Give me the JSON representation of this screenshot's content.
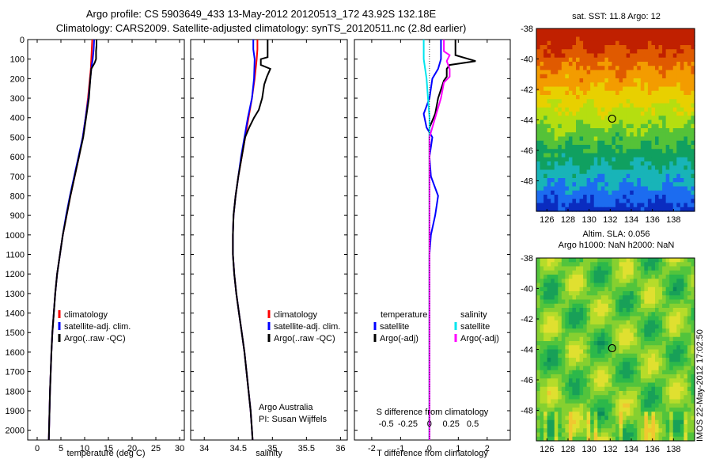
{
  "header": {
    "title_line1": "Argo profile: CS 5903649_433 13-May-2012 20120513_172 43.92S 132.18E",
    "title_line2": "Climatology: CARS2009. Satellite-adjusted climatology: synTS_20120511.nc (2.8d earlier)"
  },
  "colors": {
    "climatology": "#ff0000",
    "satellite": "#0000ff",
    "argo": "#000000",
    "satellite_salinity": "#00e5ee",
    "argo_salinity": "#ff00ff"
  },
  "chart_data": [
    {
      "id": "temperature",
      "type": "line",
      "xlabel": "temperature (deg C)",
      "xlim": [
        -2,
        31
      ],
      "xticks": [
        0,
        5,
        10,
        15,
        20,
        25,
        30
      ],
      "ylim": [
        0,
        2050
      ],
      "yticks": [
        0,
        100,
        200,
        300,
        400,
        500,
        600,
        700,
        800,
        900,
        1000,
        1100,
        1200,
        1300,
        1400,
        1500,
        1600,
        1700,
        1800,
        1900,
        2000
      ],
      "y_reversed": true,
      "legend": {
        "position": "lower-center",
        "entries": [
          "climatology",
          "satellite-adj. clim.",
          "Argo(..raw -QC)"
        ]
      },
      "series": [
        {
          "name": "climatology",
          "color": "#ff0000",
          "points": [
            [
              11.6,
              0
            ],
            [
              11.5,
              50
            ],
            [
              11.4,
              100
            ],
            [
              11.3,
              150
            ],
            [
              11.1,
              200
            ],
            [
              10.7,
              300
            ],
            [
              10.2,
              400
            ],
            [
              9.6,
              500
            ],
            [
              8.8,
              600
            ],
            [
              7.9,
              700
            ],
            [
              7.0,
              800
            ],
            [
              6.2,
              900
            ],
            [
              5.4,
              1000
            ],
            [
              4.8,
              1100
            ],
            [
              4.2,
              1200
            ],
            [
              3.8,
              1300
            ],
            [
              3.5,
              1400
            ],
            [
              3.2,
              1500
            ],
            [
              3.0,
              1600
            ],
            [
              2.85,
              1700
            ],
            [
              2.7,
              1800
            ],
            [
              2.6,
              1900
            ],
            [
              2.5,
              2000
            ],
            [
              2.45,
              2050
            ]
          ]
        },
        {
          "name": "satellite-adj. clim.",
          "color": "#0000ff",
          "points": [
            [
              12.0,
              0
            ],
            [
              11.9,
              50
            ],
            [
              11.7,
              100
            ],
            [
              11.4,
              150
            ],
            [
              11.2,
              200
            ],
            [
              10.8,
              300
            ],
            [
              10.2,
              400
            ],
            [
              9.6,
              500
            ],
            [
              8.7,
              600
            ],
            [
              7.8,
              700
            ],
            [
              6.9,
              800
            ],
            [
              6.1,
              900
            ],
            [
              5.4,
              1000
            ],
            [
              4.8,
              1100
            ],
            [
              4.2,
              1200
            ],
            [
              3.8,
              1300
            ],
            [
              3.5,
              1400
            ],
            [
              3.2,
              1500
            ],
            [
              3.0,
              1600
            ],
            [
              2.85,
              1700
            ],
            [
              2.7,
              1800
            ],
            [
              2.6,
              1900
            ],
            [
              2.5,
              2000
            ],
            [
              2.45,
              2050
            ]
          ]
        },
        {
          "name": "Argo(..raw -QC)",
          "color": "#000000",
          "points": [
            [
              12.5,
              0
            ],
            [
              12.5,
              30
            ],
            [
              12.4,
              60
            ],
            [
              12.4,
              100
            ],
            [
              12.1,
              120
            ],
            [
              11.4,
              150
            ],
            [
              11.2,
              200
            ],
            [
              10.9,
              300
            ],
            [
              10.3,
              400
            ],
            [
              9.7,
              500
            ],
            [
              8.8,
              600
            ],
            [
              7.9,
              700
            ],
            [
              7.0,
              800
            ],
            [
              6.2,
              900
            ],
            [
              5.4,
              1000
            ],
            [
              4.8,
              1100
            ],
            [
              4.2,
              1200
            ],
            [
              3.8,
              1300
            ],
            [
              3.5,
              1400
            ],
            [
              3.2,
              1500
            ],
            [
              3.0,
              1600
            ],
            [
              2.85,
              1700
            ],
            [
              2.7,
              1800
            ],
            [
              2.6,
              1900
            ],
            [
              2.5,
              2000
            ],
            [
              2.45,
              2050
            ]
          ]
        }
      ]
    },
    {
      "id": "salinity",
      "type": "line",
      "xlabel": "salinity",
      "xlim": [
        33.8,
        36.1
      ],
      "xticks": [
        34,
        34.5,
        35,
        35.5,
        36
      ],
      "xticklabels": [
        "34",
        "34.5",
        "35",
        "35.5",
        "36"
      ],
      "ylim": [
        0,
        2050
      ],
      "y_reversed": true,
      "legend": {
        "position": "lower-center",
        "entries": [
          "climatology",
          "satellite-adj. clim.",
          "Argo(..raw -QC)"
        ]
      },
      "annotation": [
        "Argo Australia",
        "PI: Susan Wijffels"
      ],
      "series": [
        {
          "name": "climatology",
          "color": "#ff0000",
          "points": [
            [
              34.78,
              0
            ],
            [
              34.78,
              50
            ],
            [
              34.77,
              100
            ],
            [
              34.74,
              200
            ],
            [
              34.7,
              300
            ],
            [
              34.65,
              400
            ],
            [
              34.6,
              500
            ],
            [
              34.55,
              600
            ],
            [
              34.5,
              700
            ],
            [
              34.46,
              800
            ],
            [
              34.43,
              900
            ],
            [
              34.42,
              1000
            ],
            [
              34.42,
              1100
            ],
            [
              34.44,
              1200
            ],
            [
              34.47,
              1300
            ],
            [
              34.51,
              1400
            ],
            [
              34.55,
              1500
            ],
            [
              34.59,
              1600
            ],
            [
              34.62,
              1700
            ],
            [
              34.65,
              1800
            ],
            [
              34.68,
              1900
            ],
            [
              34.7,
              2000
            ],
            [
              34.71,
              2050
            ]
          ]
        },
        {
          "name": "satellite-adj. clim.",
          "color": "#0000ff",
          "points": [
            [
              34.72,
              0
            ],
            [
              34.72,
              50
            ],
            [
              34.74,
              100
            ],
            [
              34.73,
              200
            ],
            [
              34.7,
              300
            ],
            [
              34.64,
              400
            ],
            [
              34.59,
              500
            ],
            [
              34.54,
              600
            ],
            [
              34.5,
              700
            ],
            [
              34.46,
              800
            ],
            [
              34.43,
              900
            ],
            [
              34.42,
              1000
            ],
            [
              34.42,
              1100
            ],
            [
              34.44,
              1200
            ],
            [
              34.47,
              1300
            ],
            [
              34.51,
              1400
            ],
            [
              34.55,
              1500
            ],
            [
              34.59,
              1600
            ],
            [
              34.62,
              1700
            ],
            [
              34.65,
              1800
            ],
            [
              34.68,
              1900
            ],
            [
              34.7,
              2000
            ],
            [
              34.71,
              2050
            ]
          ]
        },
        {
          "name": "Argo(..raw -QC)",
          "color": "#000000",
          "points": [
            [
              34.93,
              0
            ],
            [
              34.93,
              40
            ],
            [
              34.93,
              90
            ],
            [
              34.83,
              100
            ],
            [
              34.83,
              130
            ],
            [
              34.97,
              150
            ],
            [
              34.92,
              190
            ],
            [
              34.88,
              230
            ],
            [
              34.85,
              300
            ],
            [
              34.8,
              360
            ],
            [
              34.73,
              400
            ],
            [
              34.66,
              450
            ],
            [
              34.6,
              500
            ],
            [
              34.55,
              600
            ],
            [
              34.5,
              700
            ],
            [
              34.46,
              800
            ],
            [
              34.43,
              900
            ],
            [
              34.42,
              1000
            ],
            [
              34.42,
              1100
            ],
            [
              34.44,
              1200
            ],
            [
              34.47,
              1300
            ],
            [
              34.51,
              1400
            ],
            [
              34.55,
              1500
            ],
            [
              34.59,
              1600
            ],
            [
              34.62,
              1700
            ],
            [
              34.65,
              1800
            ],
            [
              34.68,
              1900
            ],
            [
              34.7,
              2000
            ],
            [
              34.71,
              2050
            ]
          ]
        }
      ]
    },
    {
      "id": "difference",
      "type": "line",
      "xlabel": "T difference from climatology",
      "xlabel_top": "S difference from climatology",
      "xlim": [
        -2.6,
        2.8
      ],
      "xticks": [
        -2,
        -1,
        0,
        1,
        2
      ],
      "xticks_salinity": [
        -0.5,
        -0.25,
        0,
        0.25,
        0.5
      ],
      "xticklabels_salinity": [
        "-0.5",
        "-0.25",
        "0",
        "0.25",
        "0.5"
      ],
      "ylim": [
        0,
        2050
      ],
      "y_reversed": true,
      "legend": {
        "position": "lower-center",
        "headers": [
          "temperature",
          "salinity"
        ],
        "entries": [
          "satellite",
          "Argo(-adj)",
          "satellite",
          "Argo(-adj)"
        ]
      },
      "series": [
        {
          "name": "satellite",
          "color": "#0000ff",
          "points": [
            [
              0.4,
              0
            ],
            [
              0.4,
              100
            ],
            [
              0.3,
              150
            ],
            [
              0.1,
              200
            ],
            [
              0.0,
              300
            ],
            [
              -0.2,
              380
            ],
            [
              -0.1,
              450
            ],
            [
              0.1,
              500
            ],
            [
              0.0,
              600
            ],
            [
              0.05,
              700
            ],
            [
              0.3,
              800
            ],
            [
              0.2,
              900
            ],
            [
              0.05,
              1000
            ],
            [
              0.0,
              1100
            ],
            [
              0.0,
              1200
            ],
            [
              0.0,
              1400
            ],
            [
              0.0,
              1600
            ],
            [
              0.0,
              1800
            ],
            [
              0.0,
              2000
            ],
            [
              0.0,
              2050
            ]
          ]
        },
        {
          "name": "Argo(-adj)",
          "color": "#000000",
          "points": [
            [
              0.9,
              0
            ],
            [
              0.9,
              80
            ],
            [
              1.6,
              110
            ],
            [
              0.7,
              130
            ],
            [
              0.6,
              150
            ],
            [
              0.6,
              190
            ],
            [
              0.5,
              210
            ],
            [
              0.3,
              300
            ],
            [
              0.2,
              380
            ],
            [
              0.0,
              450
            ],
            [
              0.0,
              500
            ],
            [
              0.0,
              600
            ],
            [
              0.0,
              700
            ],
            [
              0.0,
              800
            ],
            [
              0.0,
              1000
            ],
            [
              0.0,
              1200
            ],
            [
              0.0,
              2050
            ]
          ]
        },
        {
          "name": "satellite",
          "color": "#00e5ee",
          "points": [
            [
              -0.2,
              0
            ],
            [
              -0.2,
              100
            ],
            [
              -0.1,
              200
            ],
            [
              -0.05,
              300
            ],
            [
              0.0,
              400
            ],
            [
              0.0,
              600
            ],
            [
              0.0,
              800
            ],
            [
              0.0,
              1000
            ],
            [
              0.0,
              1200
            ],
            [
              0.0,
              1400
            ],
            [
              0.0,
              1600
            ],
            [
              0.0,
              1800
            ],
            [
              0.0,
              2050
            ]
          ]
        },
        {
          "name": "Argo(-adj)",
          "color": "#ff00ff",
          "points": [
            [
              0.5,
              0
            ],
            [
              0.5,
              60
            ],
            [
              0.7,
              80
            ],
            [
              0.6,
              110
            ],
            [
              0.7,
              150
            ],
            [
              0.7,
              190
            ],
            [
              0.5,
              220
            ],
            [
              0.4,
              300
            ],
            [
              0.2,
              400
            ],
            [
              0.0,
              500
            ],
            [
              0.0,
              600
            ],
            [
              0.0,
              800
            ],
            [
              0.0,
              1000
            ],
            [
              0.0,
              1200
            ],
            [
              0.0,
              2050
            ]
          ]
        }
      ]
    },
    {
      "id": "sst_map",
      "type": "heatmap",
      "title": "sat. SST: 11.8 Argo: 12",
      "xlim": [
        125,
        140
      ],
      "ylim": [
        -50,
        -38
      ],
      "xticks": [
        126,
        128,
        130,
        132,
        134,
        136,
        138
      ],
      "yticks": [
        -38,
        -40,
        -42,
        -44,
        -46,
        -48
      ],
      "marker": {
        "lon": 132.18,
        "lat": -43.92
      },
      "colormap": [
        "#c02000",
        "#e05a00",
        "#f39c00",
        "#e8d000",
        "#b5de10",
        "#55c238",
        "#10a060",
        "#18b4b8",
        "#1c6cf0",
        "#0a2cc0"
      ]
    },
    {
      "id": "sla_map",
      "type": "heatmap",
      "title": "Altim. SLA: 0.056",
      "subtitle": "Argo h1000: NaN h2000: NaN",
      "xlim": [
        125,
        140
      ],
      "ylim": [
        -50,
        -38
      ],
      "xticks": [
        126,
        128,
        130,
        132,
        134,
        136,
        138
      ],
      "yticks": [
        -38,
        -40,
        -42,
        -44,
        -46,
        -48
      ],
      "marker": {
        "lon": 132.18,
        "lat": -43.92
      }
    }
  ],
  "footer": {
    "stamp": "IMOS 22-May-2012 17:02:50"
  }
}
